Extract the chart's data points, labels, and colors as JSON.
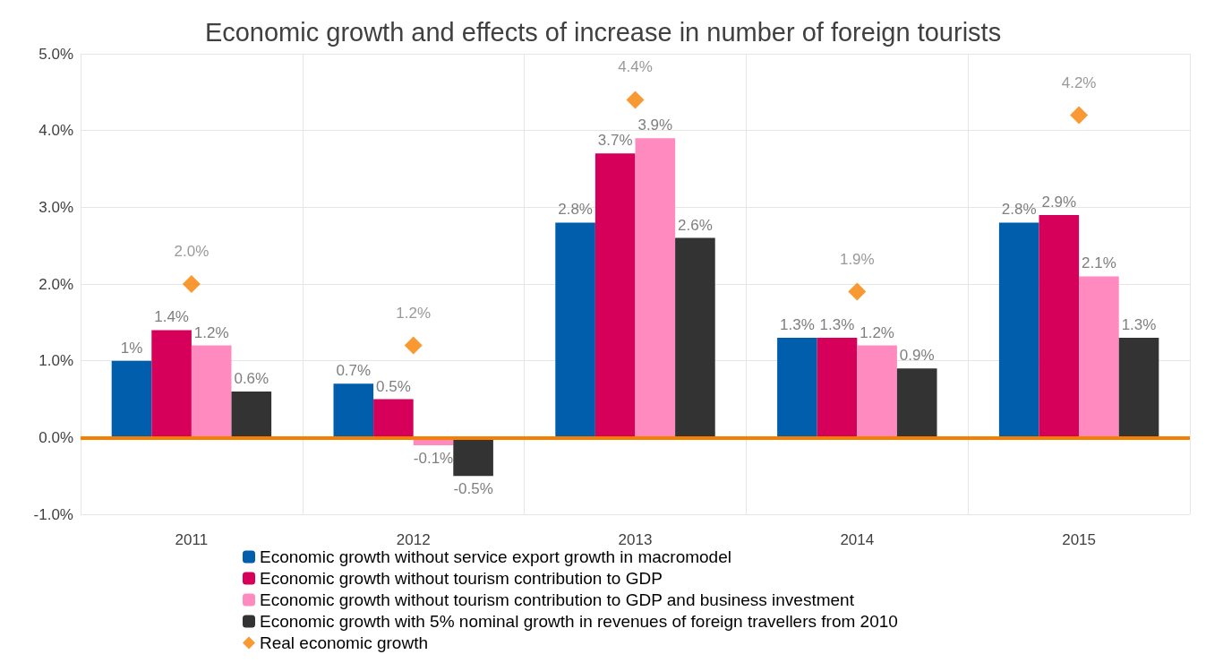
{
  "chart_data": {
    "type": "bar",
    "title": "Economic growth and effects of increase in number of foreign tourists",
    "categories": [
      "2011",
      "2012",
      "2013",
      "2014",
      "2015"
    ],
    "series": [
      {
        "name": "Economic growth without service export growth in macromodel",
        "color": "#005eac",
        "values": [
          1,
          0.7,
          2.8,
          1.3,
          2.8
        ],
        "value_labels": [
          "1%",
          "0.7%",
          "2.8%",
          "1.3%",
          "2.8%"
        ]
      },
      {
        "name": "Economic growth without tourism contribution to GDP",
        "color": "#d6005a",
        "values": [
          1.4,
          0.5,
          3.7,
          1.3,
          2.9
        ],
        "value_labels": [
          "1.4%",
          "0.5%",
          "3.7%",
          "1.3%",
          "2.9%"
        ]
      },
      {
        "name": "Economic growth without tourism contribution to GDP and business investment",
        "color": "#ff8ac0",
        "values": [
          1.2,
          -0.1,
          3.9,
          1.2,
          2.1
        ],
        "value_labels": [
          "1.2%",
          "-0.1%",
          "3.9%",
          "1.2%",
          "2.1%"
        ]
      },
      {
        "name": "Economic growth with 5% nominal growth in revenues of foreign travellers from 2010",
        "color": "#333333",
        "values": [
          0.6,
          -0.5,
          2.6,
          0.9,
          1.3
        ],
        "value_labels": [
          "0.6%",
          "-0.5%",
          "2.6%",
          "0.9%",
          "1.3%"
        ]
      },
      {
        "name": "Real economic growth",
        "type": "scatter",
        "marker": "diamond",
        "color": "#f77f00",
        "values": [
          2.0,
          1.2,
          4.4,
          1.9,
          4.2
        ],
        "value_labels": [
          "2.0%",
          "1.2%",
          "4.4%",
          "1.9%",
          "4.2%"
        ]
      }
    ],
    "ylim": [
      -1,
      5
    ],
    "yticks": [
      {
        "value": -1,
        "label": "-1.0%"
      },
      {
        "value": 0,
        "label": "0.0%"
      },
      {
        "value": 1,
        "label": "1.0%"
      },
      {
        "value": 2,
        "label": "2.0%"
      },
      {
        "value": 3,
        "label": "3.0%"
      },
      {
        "value": 4,
        "label": "4.0%"
      },
      {
        "value": 5,
        "label": "5.0%"
      }
    ],
    "ref_lines": [
      {
        "axis": "y",
        "value": 0,
        "color": "#f77f00"
      }
    ],
    "grid": true,
    "legend": "bottom"
  }
}
